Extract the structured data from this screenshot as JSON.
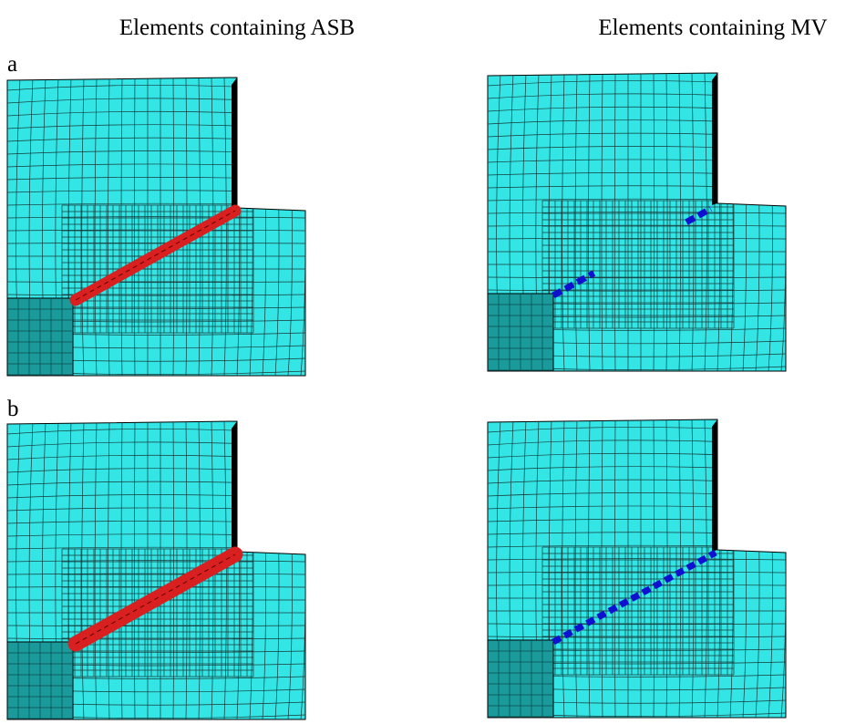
{
  "columns": [
    "Elements containing ASB",
    "Elements containing MV"
  ],
  "rows": [
    "a",
    "b"
  ]
}
